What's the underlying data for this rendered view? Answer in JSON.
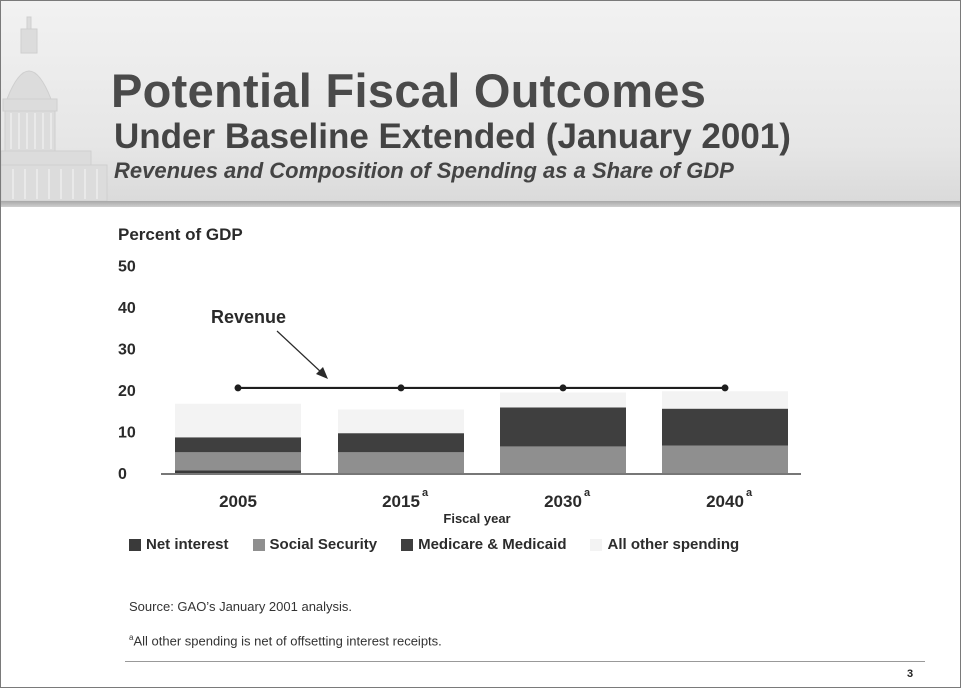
{
  "slide": {
    "title": "Potential Fiscal Outcomes",
    "subtitle": "Under Baseline Extended (January 2001)",
    "subsubtitle": "Revenues and Composition of Spending as a Share of GDP",
    "source": "Source:  GAO’s January 2001 analysis.",
    "footnote_marker": "a",
    "footnote": "All other spending is net of offsetting interest receipts.",
    "page_number": "3"
  },
  "chart_data": {
    "type": "bar",
    "stacked": true,
    "ylabel": "Percent of GDP",
    "xlabel": "Fiscal year",
    "ylim": [
      0,
      50
    ],
    "yticks": [
      0,
      10,
      20,
      30,
      40,
      50
    ],
    "categories": [
      {
        "label": "2005",
        "superscript": ""
      },
      {
        "label": "2015",
        "superscript": "a"
      },
      {
        "label": "2030",
        "superscript": "a"
      },
      {
        "label": "2040",
        "superscript": "a"
      }
    ],
    "series": [
      {
        "name": "Net interest",
        "color": "#3a3a3a",
        "values": [
          0.6,
          0,
          0,
          0
        ]
      },
      {
        "name": "Social Security",
        "color": "#8f8f8f",
        "values": [
          4.4,
          5.0,
          6.4,
          6.6
        ]
      },
      {
        "name": "Medicare & Medicaid",
        "color": "#3f3f3f",
        "values": [
          3.6,
          4.6,
          9.4,
          8.9
        ]
      },
      {
        "name": "All other spending",
        "color": "#f3f3f3",
        "values": [
          8.1,
          5.7,
          3.6,
          4.2
        ]
      }
    ],
    "line": {
      "name": "Revenue",
      "annotation": "Revenue",
      "values": [
        20.5,
        20.5,
        20.5,
        20.5
      ]
    },
    "legend_position": "bottom",
    "grid": false
  }
}
